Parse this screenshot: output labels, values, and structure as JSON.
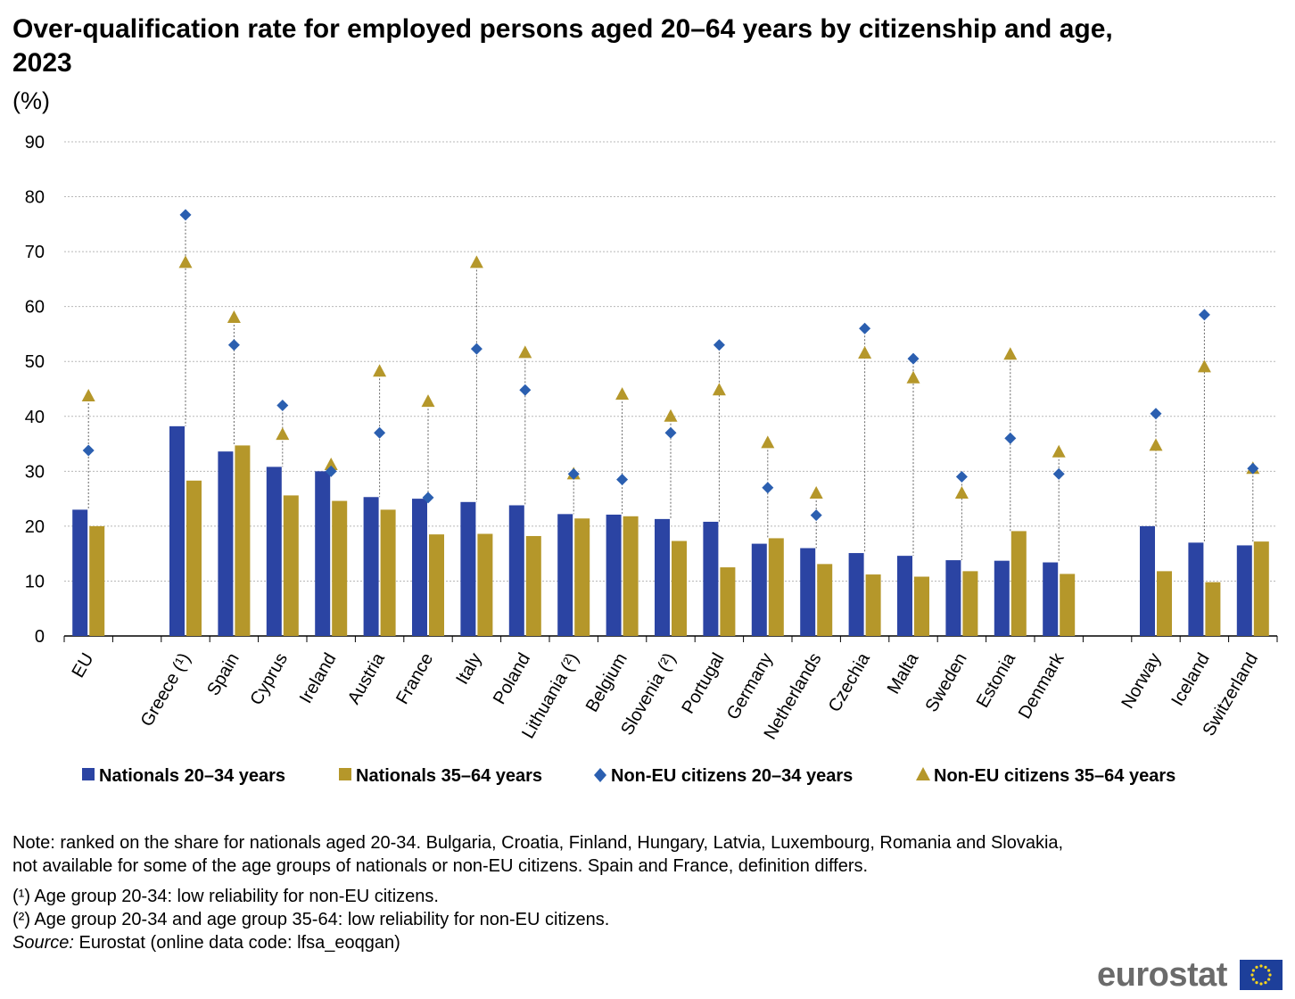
{
  "chart_data": {
    "type": "bar",
    "title": "Over-qualification rate for employed persons aged 20–64 years by citizenship and age, 2023",
    "unit": "(%)",
    "ylim": [
      0,
      90
    ],
    "yticks": [
      0,
      10,
      20,
      30,
      40,
      50,
      60,
      70,
      80,
      90
    ],
    "grid": true,
    "legend_position": "bottom",
    "categories": [
      "EU",
      "Greece (¹)",
      "Spain",
      "Cyprus",
      "Ireland",
      "Austria",
      "France",
      "Italy",
      "Poland",
      "Lithuania (²)",
      "Belgium",
      "Slovenia (²)",
      "Portugal",
      "Germany",
      "Netherlands",
      "Czechia",
      "Malta",
      "Sweden",
      "Estonia",
      "Denmark",
      "Norway",
      "Iceland",
      "Switzerland"
    ],
    "series": [
      {
        "name": "Nationals 20–34 years",
        "type": "bar",
        "color": "#2b44a3",
        "values": [
          23.0,
          38.2,
          33.6,
          30.8,
          30.0,
          25.3,
          25.0,
          24.4,
          23.8,
          22.2,
          22.1,
          21.3,
          20.8,
          16.8,
          16.0,
          15.1,
          14.6,
          13.8,
          13.7,
          13.4,
          20.0,
          17.0,
          16.5
        ]
      },
      {
        "name": "Nationals 35–64 years",
        "type": "bar",
        "color": "#b5972a",
        "values": [
          20.0,
          28.3,
          34.7,
          25.6,
          24.6,
          23.0,
          18.5,
          18.6,
          18.2,
          21.4,
          21.8,
          17.3,
          12.5,
          17.8,
          13.1,
          11.2,
          10.8,
          11.8,
          19.1,
          11.3,
          11.8,
          9.8,
          17.2
        ]
      },
      {
        "name": "Non-EU citizens 20–34 years",
        "type": "diamond",
        "color": "#2b5fb0",
        "values": [
          33.8,
          76.7,
          53.0,
          42.0,
          30.0,
          37.0,
          25.2,
          52.3,
          44.8,
          29.5,
          28.5,
          37.0,
          53.0,
          27.0,
          22.0,
          56.0,
          50.5,
          29.0,
          36.0,
          29.5,
          40.5,
          58.5,
          30.5
        ]
      },
      {
        "name": "Non-EU citizens 35–64 years",
        "type": "triangle",
        "color": "#b5972a",
        "values": [
          43.7,
          68.0,
          58.0,
          36.7,
          31.2,
          48.2,
          42.7,
          68.0,
          51.6,
          29.5,
          44.0,
          40.0,
          44.8,
          35.2,
          26.0,
          51.5,
          47.0,
          26.0,
          51.3,
          33.5,
          34.7,
          49.0,
          30.5
        ]
      }
    ]
  },
  "notes": {
    "note": "Note: ranked on the share for nationals aged 20-34. Bulgaria, Croatia, Finland, Hungary, Latvia, Luxembourg, Romania and Slovakia, not available for some of the age groups of nationals or non-EU citizens. Spain and France, definition differs.",
    "footnote1": "(¹) Age group 20-34: low reliability for non-EU citizens.",
    "footnote2": "(²) Age group 20-34 and age group 35-64: low reliability for non-EU citizens.",
    "source_label": "Source:",
    "source_text": " Eurostat (online data code: lfsa_eoqgan)"
  },
  "logo": {
    "text": "eurostat"
  }
}
